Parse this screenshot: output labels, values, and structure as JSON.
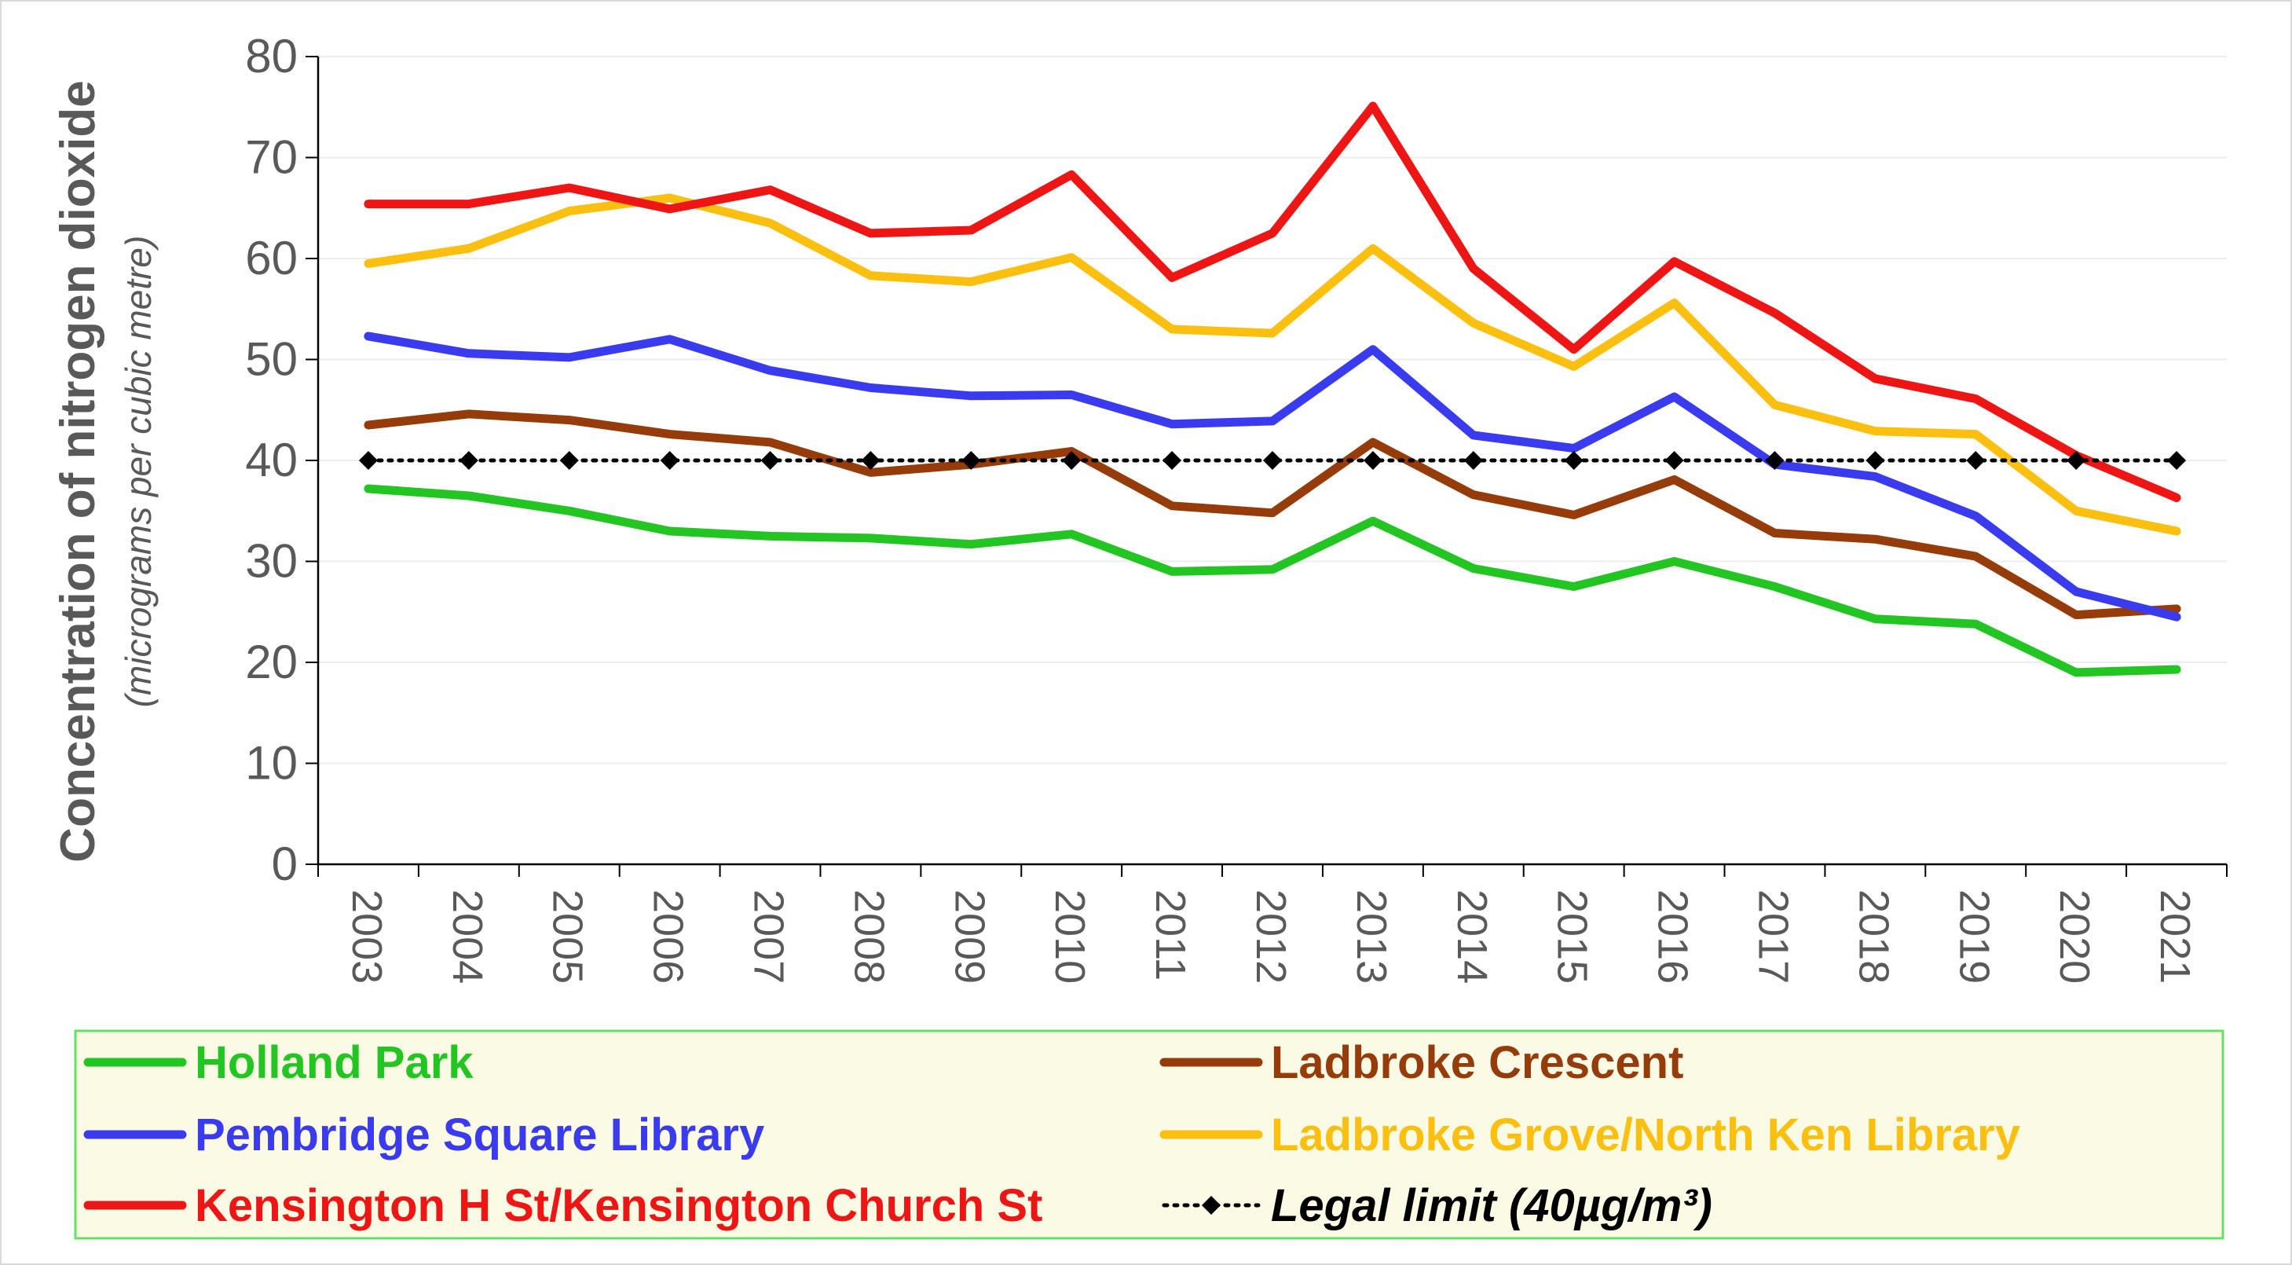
{
  "chart_data": {
    "type": "line",
    "ylabel": "Concentration of nitrogen dioxide",
    "ylabel_sub": "(micrograms per cubic metre)",
    "xlabel": "",
    "ylim": [
      0,
      80
    ],
    "yticks": [
      0,
      10,
      20,
      30,
      40,
      50,
      60,
      70,
      80
    ],
    "grid": true,
    "legend_position": "bottom",
    "x": [
      "2003",
      "2004",
      "2005",
      "2006",
      "2007",
      "2008",
      "2009",
      "2010",
      "2011",
      "2012",
      "2013",
      "2014",
      "2015",
      "2016",
      "2017",
      "2018",
      "2019",
      "2020",
      "2021"
    ],
    "series": [
      {
        "name": "Holland Park",
        "color": "#22c522",
        "values": [
          37.2,
          36.5,
          35.0,
          33.0,
          32.5,
          32.3,
          31.7,
          32.7,
          29.0,
          29.2,
          34.0,
          29.3,
          27.5,
          30.0,
          27.5,
          24.3,
          23.8,
          19.0,
          19.3
        ]
      },
      {
        "name": "Ladbroke Crescent",
        "color": "#963c0b",
        "values": [
          43.5,
          44.6,
          44.0,
          42.6,
          41.8,
          38.8,
          39.6,
          40.9,
          35.5,
          34.8,
          41.8,
          36.6,
          34.6,
          38.1,
          32.8,
          32.2,
          30.5,
          24.7,
          25.3
        ]
      },
      {
        "name": "Pembridge Square Library",
        "color": "#3a3aee",
        "values": [
          52.3,
          50.6,
          50.2,
          52.0,
          48.9,
          47.2,
          46.4,
          46.5,
          43.6,
          43.9,
          51.0,
          42.5,
          41.2,
          46.3,
          39.6,
          38.4,
          34.5,
          27.0,
          24.5
        ]
      },
      {
        "name": "Ladbroke Grove/North Ken Library",
        "color": "#fbbf0f",
        "values": [
          59.5,
          61.0,
          64.7,
          66.0,
          63.5,
          58.3,
          57.7,
          60.1,
          53.0,
          52.6,
          61.0,
          53.6,
          49.3,
          55.6,
          45.5,
          42.9,
          42.6,
          35.0,
          33.0
        ]
      },
      {
        "name": "Kensington H St/Kensington Church St",
        "color": "#ee1515",
        "values": [
          65.4,
          65.4,
          67.0,
          64.9,
          66.8,
          62.5,
          62.8,
          68.3,
          58.1,
          62.5,
          75.1,
          59.0,
          51.0,
          59.7,
          54.6,
          48.1,
          46.1,
          40.5,
          36.3
        ]
      },
      {
        "name": "Legal limit (40µg/m³)",
        "color": "#000000",
        "style": "dotted",
        "marker": "diamond",
        "values": [
          40,
          40,
          40,
          40,
          40,
          40,
          40,
          40,
          40,
          40,
          40,
          40,
          40,
          40,
          40,
          40,
          40,
          40,
          40
        ]
      }
    ]
  }
}
